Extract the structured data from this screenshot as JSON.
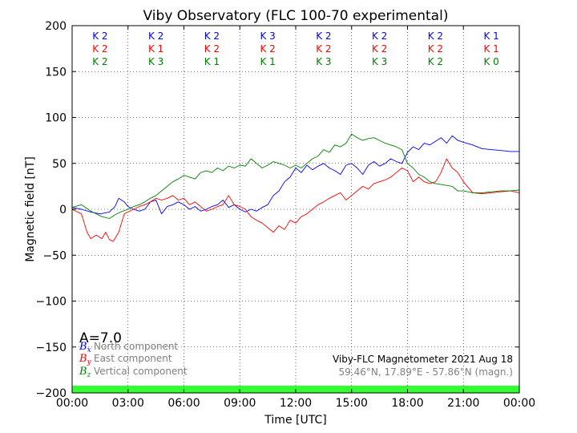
{
  "chart_data": {
    "type": "line",
    "title": "Viby Observatory (FLC 100-70 experimental)",
    "xlabel": "Time [UTC]",
    "ylabel": "Magnetic field [nT]",
    "xlim": [
      0,
      24
    ],
    "ylim": [
      -200,
      200
    ],
    "x_ticks": [
      {
        "value": 0,
        "label": "00:00"
      },
      {
        "value": 3,
        "label": "03:00"
      },
      {
        "value": 6,
        "label": "06:00"
      },
      {
        "value": 9,
        "label": "09:00"
      },
      {
        "value": 12,
        "label": "12:00"
      },
      {
        "value": 15,
        "label": "15:00"
      },
      {
        "value": 18,
        "label": "18:00"
      },
      {
        "value": 21,
        "label": "21:00"
      },
      {
        "value": 24,
        "label": "00:00"
      }
    ],
    "y_ticks": [
      {
        "value": 200,
        "label": "200"
      },
      {
        "value": 150,
        "label": "150"
      },
      {
        "value": 100,
        "label": "100"
      },
      {
        "value": 50,
        "label": "50"
      },
      {
        "value": 0,
        "label": "0"
      },
      {
        "value": -50,
        "label": "−50"
      },
      {
        "value": -100,
        "label": "−100"
      },
      {
        "value": -150,
        "label": "−150"
      },
      {
        "value": -200,
        "label": "−200"
      }
    ],
    "grid": true,
    "k_index": {
      "north": [
        "K 2",
        "K 2",
        "K 2",
        "K 3",
        "K 2",
        "K 2",
        "K 2",
        "K 1"
      ],
      "east": [
        "K 2",
        "K 1",
        "K 2",
        "K 2",
        "K 2",
        "K 2",
        "K 2",
        "K 1"
      ],
      "vertical": [
        "K 2",
        "K 3",
        "K 1",
        "K 1",
        "K 3",
        "K 3",
        "K 2",
        "K 0"
      ]
    },
    "a_index": "A=7.0",
    "series": [
      {
        "symbol": "B",
        "subscript": "x",
        "name": "North component",
        "color": "#0000ff",
        "x": [
          0,
          0.5,
          1,
          1.5,
          2,
          2.3,
          2.5,
          2.8,
          3,
          3.3,
          3.6,
          3.9,
          4.2,
          4.5,
          4.8,
          5.1,
          5.4,
          5.7,
          6,
          6.3,
          6.6,
          6.9,
          7.2,
          7.5,
          7.8,
          8.1,
          8.4,
          8.7,
          9,
          9.3,
          9.6,
          9.9,
          10.2,
          10.5,
          10.8,
          11.1,
          11.4,
          11.7,
          12,
          12.3,
          12.6,
          12.9,
          13.2,
          13.5,
          13.8,
          14.1,
          14.4,
          14.7,
          15,
          15.3,
          15.6,
          15.9,
          16.2,
          16.5,
          16.8,
          17.1,
          17.4,
          17.7,
          18,
          18.3,
          18.6,
          18.9,
          19.2,
          19.5,
          19.8,
          20.1,
          20.4,
          20.7,
          21,
          21.5,
          22,
          22.5,
          23,
          23.5,
          24
        ],
        "values": [
          2,
          0,
          -3,
          -5,
          -3,
          3,
          12,
          8,
          3,
          0,
          -2,
          0,
          8,
          10,
          -5,
          3,
          5,
          8,
          5,
          0,
          3,
          -2,
          0,
          3,
          5,
          10,
          2,
          5,
          0,
          -3,
          0,
          -2,
          2,
          5,
          15,
          20,
          30,
          35,
          45,
          40,
          48,
          43,
          47,
          50,
          45,
          42,
          38,
          48,
          50,
          45,
          38,
          48,
          52,
          47,
          50,
          55,
          52,
          50,
          62,
          68,
          65,
          72,
          70,
          74,
          78,
          72,
          80,
          75,
          73,
          70,
          66,
          65,
          64,
          63,
          63
        ]
      },
      {
        "symbol": "B",
        "subscript": "y",
        "name": "East component",
        "color": "#ff0000",
        "x": [
          0,
          0.5,
          0.8,
          1,
          1.3,
          1.6,
          1.8,
          2,
          2.2,
          2.5,
          2.8,
          3,
          3.3,
          3.6,
          3.9,
          4.2,
          4.5,
          4.8,
          5.1,
          5.4,
          5.7,
          6,
          6.3,
          6.6,
          6.9,
          7.2,
          7.5,
          7.8,
          8.1,
          8.4,
          8.7,
          9,
          9.3,
          9.6,
          9.9,
          10.2,
          10.5,
          10.8,
          11.1,
          11.4,
          11.7,
          12,
          12.3,
          12.6,
          12.9,
          13.2,
          13.5,
          13.8,
          14.1,
          14.4,
          14.7,
          15,
          15.3,
          15.6,
          15.9,
          16.2,
          16.5,
          16.8,
          17.1,
          17.4,
          17.7,
          18,
          18.3,
          18.6,
          18.9,
          19.2,
          19.5,
          19.8,
          20.1,
          20.4,
          20.7,
          21,
          21.5,
          22,
          22.5,
          23,
          23.5,
          24
        ],
        "values": [
          0,
          -5,
          -25,
          -32,
          -28,
          -32,
          -25,
          -33,
          -35,
          -25,
          -5,
          -3,
          0,
          3,
          5,
          8,
          12,
          10,
          12,
          15,
          10,
          12,
          5,
          8,
          3,
          -2,
          0,
          3,
          5,
          15,
          5,
          3,
          0,
          -8,
          -12,
          -15,
          -20,
          -25,
          -18,
          -22,
          -12,
          -15,
          -8,
          -5,
          0,
          5,
          8,
          12,
          15,
          18,
          10,
          15,
          20,
          25,
          22,
          28,
          30,
          32,
          35,
          40,
          45,
          42,
          30,
          35,
          30,
          28,
          30,
          40,
          55,
          45,
          40,
          30,
          18,
          17,
          18,
          19,
          20,
          18
        ]
      },
      {
        "symbol": "B",
        "subscript": "z",
        "name": "Vertical component",
        "color": "#008000",
        "x": [
          0,
          0.5,
          1,
          1.3,
          1.6,
          2,
          2.3,
          2.6,
          3,
          3.3,
          3.6,
          3.9,
          4.2,
          4.5,
          4.8,
          5.1,
          5.4,
          5.7,
          6,
          6.3,
          6.6,
          6.9,
          7.2,
          7.5,
          7.8,
          8.1,
          8.4,
          8.7,
          9,
          9.3,
          9.6,
          9.9,
          10.2,
          10.5,
          10.8,
          11.1,
          11.4,
          11.7,
          12,
          12.3,
          12.6,
          12.9,
          13.2,
          13.5,
          13.8,
          14.1,
          14.4,
          14.7,
          15,
          15.3,
          15.6,
          15.9,
          16.2,
          16.5,
          16.8,
          17.1,
          17.4,
          17.7,
          18,
          18.3,
          18.6,
          18.9,
          19.2,
          19.5,
          19.8,
          20.1,
          20.4,
          20.7,
          21,
          21.5,
          22,
          22.5,
          23,
          23.5,
          24
        ],
        "values": [
          2,
          5,
          -2,
          -5,
          -8,
          -10,
          -6,
          -3,
          0,
          3,
          5,
          8,
          12,
          15,
          20,
          25,
          30,
          33,
          37,
          35,
          33,
          40,
          42,
          40,
          45,
          42,
          47,
          45,
          48,
          47,
          55,
          50,
          45,
          48,
          52,
          50,
          48,
          45,
          48,
          45,
          50,
          55,
          58,
          65,
          62,
          70,
          68,
          72,
          82,
          78,
          75,
          77,
          78,
          75,
          72,
          70,
          68,
          65,
          50,
          45,
          38,
          35,
          30,
          28,
          27,
          26,
          25,
          20,
          20,
          18,
          18,
          19,
          20,
          20,
          21
        ]
      }
    ],
    "footer": {
      "line1": "Viby-FLC Magnetometer 2021 Aug 18",
      "line2": "59.46°N, 17.89°E - 57.86°N (magn.)"
    },
    "status_bar_color": "#33ff33"
  }
}
